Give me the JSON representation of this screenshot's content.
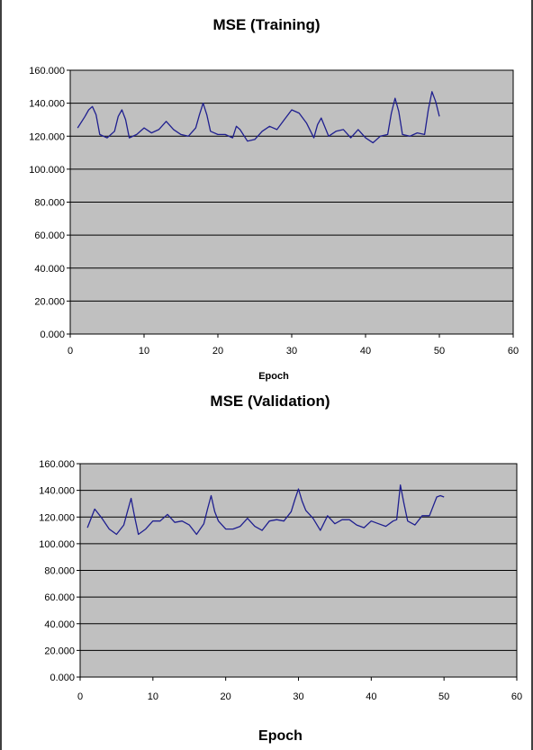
{
  "chart_data": [
    {
      "type": "line",
      "title": "MSE (Training)",
      "xlabel": "Epoch",
      "ylabel": "",
      "xlim": [
        0,
        60
      ],
      "ylim": [
        0,
        160000
      ],
      "xticks": [
        "0",
        "10",
        "20",
        "30",
        "40",
        "50",
        "60"
      ],
      "yticks": [
        "0.000",
        "20.000",
        "40.000",
        "60.000",
        "80.000",
        "100.000",
        "120.000",
        "140.000",
        "160.000"
      ],
      "grid": true,
      "plot_background": "#c0c0c0",
      "line_color": "#1f1f8f",
      "series": [
        {
          "x": [
            1,
            2,
            2.5,
            3,
            3.5,
            4,
            5,
            6,
            6.5,
            7,
            7.5,
            8,
            9,
            10,
            11,
            12,
            13,
            14,
            15,
            16,
            17,
            17.5,
            18,
            18.5,
            19,
            20,
            21,
            22,
            22.5,
            23,
            24,
            25,
            26,
            27,
            28,
            29,
            30,
            31,
            32,
            33,
            33.5,
            34,
            35,
            36,
            37,
            38,
            39,
            40,
            41,
            42,
            43,
            43.5,
            44,
            44.5,
            45,
            46,
            47,
            48,
            48.5,
            49,
            49.5,
            50
          ],
          "y": [
            125000,
            132000,
            136000,
            138000,
            133000,
            121000,
            119000,
            123000,
            132000,
            136000,
            130000,
            119000,
            121000,
            125000,
            122000,
            124000,
            129000,
            124000,
            121000,
            120000,
            125000,
            133000,
            140000,
            133000,
            123000,
            121000,
            121000,
            119000,
            126000,
            124000,
            117000,
            118000,
            123000,
            126000,
            124000,
            130000,
            136000,
            134000,
            128000,
            119000,
            127000,
            131000,
            120000,
            123000,
            124000,
            119000,
            124000,
            119000,
            116000,
            120000,
            121000,
            134000,
            143000,
            135000,
            121000,
            120000,
            122000,
            121000,
            136000,
            147000,
            141000,
            132000
          ]
        }
      ]
    },
    {
      "type": "line",
      "title": "MSE (Validation)",
      "xlabel": "Epoch",
      "ylabel": "",
      "xlim": [
        0,
        60
      ],
      "ylim": [
        0,
        160000
      ],
      "xticks": [
        "0",
        "10",
        "20",
        "30",
        "40",
        "50",
        "60"
      ],
      "yticks": [
        "0.000",
        "20.000",
        "40.000",
        "60.000",
        "80.000",
        "100.000",
        "120.000",
        "140.000",
        "160.000"
      ],
      "grid": true,
      "plot_background": "#c0c0c0",
      "line_color": "#1f1f8f",
      "series": [
        {
          "x": [
            1,
            2,
            3,
            4,
            5,
            6,
            6.5,
            7,
            7.5,
            8,
            9,
            10,
            11,
            12,
            13,
            14,
            15,
            16,
            17,
            17.5,
            18,
            18.5,
            19,
            20,
            21,
            22,
            23,
            24,
            25,
            26,
            27,
            28,
            29,
            29.5,
            30,
            30.5,
            31,
            32,
            33,
            34,
            35,
            36,
            37,
            38,
            39,
            40,
            41,
            42,
            43,
            43.5,
            44,
            44.5,
            45,
            46,
            47,
            48,
            49,
            49.5,
            50
          ],
          "y": [
            112000,
            126000,
            119000,
            111000,
            107000,
            114000,
            124000,
            134000,
            120000,
            107000,
            111000,
            117000,
            117000,
            122000,
            116000,
            117000,
            114000,
            107000,
            115000,
            126000,
            136000,
            124000,
            117000,
            111000,
            111000,
            113000,
            119000,
            113000,
            110000,
            117000,
            118000,
            117000,
            124000,
            133000,
            141000,
            132000,
            125000,
            119000,
            110000,
            121000,
            115000,
            118000,
            118000,
            114000,
            112000,
            117000,
            115000,
            113000,
            117000,
            118000,
            144000,
            130000,
            117000,
            114000,
            121000,
            121000,
            135000,
            136000,
            135000
          ]
        }
      ]
    }
  ]
}
